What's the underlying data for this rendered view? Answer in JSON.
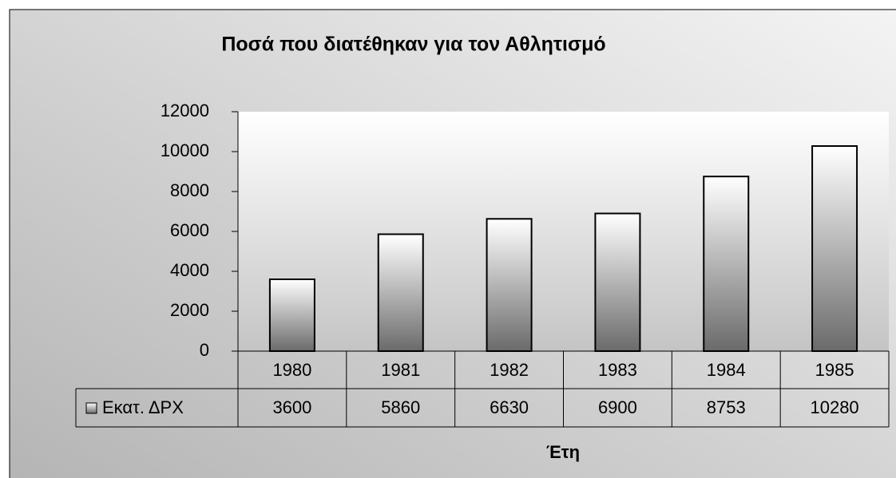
{
  "chart_data": {
    "type": "bar",
    "title": "Ποσά που διατέθηκαν για τον Αθλητισμό",
    "categories": [
      "1980",
      "1981",
      "1982",
      "1983",
      "1984",
      "1985"
    ],
    "series": [
      {
        "name": "Εκατ. ΔΡΧ",
        "color": "#808080",
        "values": [
          3600,
          5860,
          6630,
          6900,
          8753,
          10280
        ]
      }
    ],
    "x_label": "Έτη",
    "ylim": [
      0,
      12000
    ],
    "yticks": [
      0,
      2000,
      4000,
      6000,
      8000,
      10000,
      12000
    ],
    "data_table": true
  }
}
